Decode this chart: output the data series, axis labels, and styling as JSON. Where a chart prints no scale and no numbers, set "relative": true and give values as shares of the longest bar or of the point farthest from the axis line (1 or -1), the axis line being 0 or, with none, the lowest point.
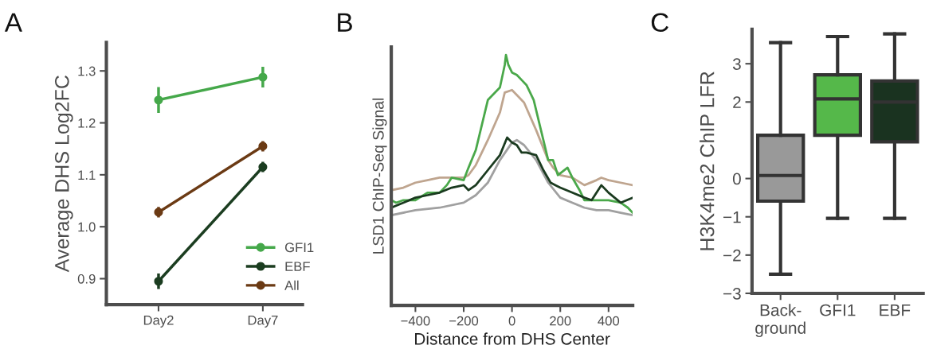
{
  "chart_data": [
    {
      "type": "line",
      "title": "A",
      "ylabel": "Average DHS Log2FC",
      "categories": [
        "Day2",
        "Day7"
      ],
      "ylim": [
        0.85,
        1.355
      ],
      "yticks": [
        0.9,
        {
          "value": 1.0,
          "label": "1.0"
        },
        1.1,
        1.2,
        1.3
      ],
      "marker": "circle",
      "legend": "bottom right",
      "grid": false,
      "series": [
        {
          "name": "GFI1",
          "color": "#45a84a",
          "values": [
            1.244,
            1.288
          ],
          "errors": [
            0.025,
            0.02
          ]
        },
        {
          "name": "EBF",
          "color": "#1b3d20",
          "values": [
            0.895,
            1.115
          ],
          "errors": [
            0.015,
            0.01
          ]
        },
        {
          "name": "All",
          "color": "#6b3a14",
          "values": [
            1.028,
            1.155
          ],
          "errors": [
            0.01,
            0.01
          ]
        }
      ]
    },
    {
      "type": "line",
      "title": "B",
      "xlabel": "Distance from DHS Center",
      "ylabel": "LSD1 ChIP-Seq Signal",
      "relative": true,
      "xlim": [
        -500,
        500
      ],
      "xticks": [
        {
          "value": -400,
          "label": "−400"
        },
        {
          "value": -200,
          "label": "−200"
        },
        0,
        200,
        400
      ],
      "grid": false,
      "series": [
        {
          "color": "#a0a0a0",
          "x": [
            -500,
            -400,
            -300,
            -200,
            -150,
            -100,
            -50,
            0,
            20,
            50,
            100,
            150,
            200,
            250,
            300,
            350,
            400,
            450,
            500
          ],
          "values": [
            0.36,
            0.38,
            0.39,
            0.41,
            0.44,
            0.49,
            0.58,
            0.65,
            0.66,
            0.64,
            0.58,
            0.49,
            0.43,
            0.41,
            0.39,
            0.38,
            0.38,
            0.37,
            0.36
          ]
        },
        {
          "color": "#bfa58f",
          "x": [
            -500,
            -450,
            -400,
            -350,
            -300,
            -250,
            -200,
            -180,
            -150,
            -100,
            -50,
            -30,
            0,
            20,
            50,
            100,
            150,
            170,
            200,
            250,
            300,
            350,
            370,
            400,
            450,
            500
          ],
          "values": [
            0.46,
            0.47,
            0.49,
            0.5,
            0.51,
            0.51,
            0.51,
            0.52,
            0.56,
            0.66,
            0.77,
            0.85,
            0.86,
            0.84,
            0.81,
            0.7,
            0.58,
            0.55,
            0.52,
            0.51,
            0.48,
            0.5,
            0.51,
            0.5,
            0.49,
            0.48
          ]
        },
        {
          "color": "#4aa84a",
          "x": [
            -500,
            -480,
            -450,
            -400,
            -350,
            -300,
            -270,
            -250,
            -200,
            -180,
            -150,
            -100,
            -50,
            -30,
            -25,
            -15,
            0,
            20,
            40,
            60,
            90,
            120,
            150,
            170,
            190,
            230,
            250,
            280,
            300,
            330,
            350,
            400,
            450,
            480,
            500
          ],
          "values": [
            0.42,
            0.41,
            0.42,
            0.42,
            0.45,
            0.45,
            0.48,
            0.51,
            0.5,
            0.55,
            0.62,
            0.82,
            0.87,
            0.96,
            1.0,
            0.96,
            0.93,
            0.92,
            0.9,
            0.88,
            0.82,
            0.7,
            0.58,
            0.58,
            0.52,
            0.55,
            0.51,
            0.46,
            0.42,
            0.42,
            0.42,
            0.42,
            0.41,
            0.39,
            0.37
          ]
        },
        {
          "color": "#1a3a1f",
          "x": [
            -500,
            -450,
            -400,
            -350,
            -300,
            -250,
            -200,
            -180,
            -150,
            -100,
            -50,
            -20,
            0,
            20,
            40,
            60,
            100,
            130,
            160,
            180,
            200,
            250,
            300,
            330,
            370,
            400,
            450,
            500
          ],
          "values": [
            0.39,
            0.41,
            0.43,
            0.44,
            0.45,
            0.47,
            0.48,
            0.46,
            0.48,
            0.54,
            0.6,
            0.67,
            0.65,
            0.64,
            0.61,
            0.61,
            0.6,
            0.54,
            0.49,
            0.48,
            0.47,
            0.45,
            0.43,
            0.42,
            0.48,
            0.45,
            0.41,
            0.43
          ]
        }
      ]
    },
    {
      "type": "box",
      "title": "C",
      "ylabel": "H3K4me2 ChIP LFR",
      "categories": [
        "Back-\nground",
        "GFI1",
        "EBF"
      ],
      "ylim": [
        -3,
        3.9
      ],
      "yticks": [
        {
          "value": -3,
          "label": "−3"
        },
        {
          "value": -2,
          "label": "−2"
        },
        {
          "value": -1,
          "label": "−1"
        },
        0,
        2,
        3
      ],
      "grid": false,
      "colors": [
        "#999999",
        "#55b84a",
        "#1a3320"
      ],
      "boxes": [
        {
          "low": -2.5,
          "q1": -0.59,
          "median": 0.08,
          "q3": 1.13,
          "high": 3.55
        },
        {
          "low": -1.04,
          "q1": 1.13,
          "median": 2.08,
          "q3": 2.71,
          "high": 3.71
        },
        {
          "low": -1.04,
          "q1": 0.96,
          "median": 2.0,
          "q3": 2.55,
          "high": 3.78
        }
      ]
    }
  ]
}
